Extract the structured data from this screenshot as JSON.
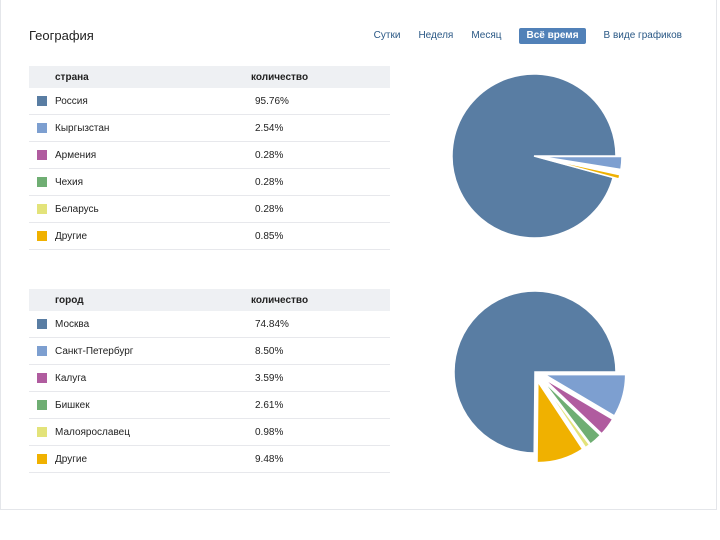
{
  "header": {
    "title": "География",
    "tabs": [
      {
        "label": "Сутки",
        "active": false
      },
      {
        "label": "Неделя",
        "active": false
      },
      {
        "label": "Месяц",
        "active": false
      },
      {
        "label": "Всё время",
        "active": true
      },
      {
        "label": "В виде графиков",
        "active": false
      }
    ]
  },
  "countries": {
    "col_name": "страна",
    "col_value": "количество",
    "rows": [
      {
        "name": "Россия",
        "value": "95.76%",
        "pct": 95.76,
        "color": "#597da3"
      },
      {
        "name": "Кыргызстан",
        "value": "2.54%",
        "pct": 2.54,
        "color": "#7d9fd0"
      },
      {
        "name": "Армения",
        "value": "0.28%",
        "pct": 0.28,
        "color": "#b05c9f"
      },
      {
        "name": "Чехия",
        "value": "0.28%",
        "pct": 0.28,
        "color": "#6fae73"
      },
      {
        "name": "Беларусь",
        "value": "0.28%",
        "pct": 0.28,
        "color": "#e3e37a"
      },
      {
        "name": "Другие",
        "value": "0.85%",
        "pct": 0.85,
        "color": "#f0b100"
      }
    ]
  },
  "cities": {
    "col_name": "город",
    "col_value": "количество",
    "rows": [
      {
        "name": "Москва",
        "value": "74.84%",
        "pct": 74.84,
        "color": "#597da3"
      },
      {
        "name": "Санкт-Петербург",
        "value": "8.50%",
        "pct": 8.5,
        "color": "#7d9fd0"
      },
      {
        "name": "Калуга",
        "value": "3.59%",
        "pct": 3.59,
        "color": "#b05c9f"
      },
      {
        "name": "Бишкек",
        "value": "2.61%",
        "pct": 2.61,
        "color": "#6fae73"
      },
      {
        "name": "Малоярославец",
        "value": "0.98%",
        "pct": 0.98,
        "color": "#e3e37a"
      },
      {
        "name": "Другие",
        "value": "9.48%",
        "pct": 9.48,
        "color": "#f0b100"
      }
    ]
  }
}
